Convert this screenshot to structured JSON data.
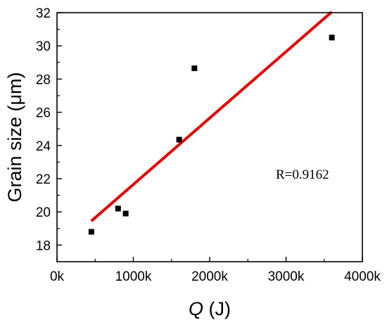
{
  "chart_data": {
    "type": "scatter",
    "title": "",
    "xlabel": {
      "symbol": "Q",
      "unit": " (J)"
    },
    "ylabel": "Grain size (μm)",
    "xlim": [
      0,
      4000000
    ],
    "ylim": [
      17,
      32
    ],
    "x_ticks": [
      {
        "value": 0,
        "label": "0k"
      },
      {
        "value": 1000000,
        "label": "1000k"
      },
      {
        "value": 2000000,
        "label": "2000k"
      },
      {
        "value": 3000000,
        "label": "3000k"
      },
      {
        "value": 4000000,
        "label": "4000k"
      }
    ],
    "y_ticks": [
      {
        "value": 18,
        "label": "18"
      },
      {
        "value": 20,
        "label": "20"
      },
      {
        "value": 22,
        "label": "22"
      },
      {
        "value": 24,
        "label": "24"
      },
      {
        "value": 26,
        "label": "26"
      },
      {
        "value": 28,
        "label": "28"
      },
      {
        "value": 30,
        "label": "30"
      },
      {
        "value": 32,
        "label": "32"
      }
    ],
    "points": [
      {
        "x": 450000,
        "y": 18.8
      },
      {
        "x": 800000,
        "y": 20.2
      },
      {
        "x": 900000,
        "y": 19.9
      },
      {
        "x": 1600000,
        "y": 24.35
      },
      {
        "x": 1800000,
        "y": 28.65
      },
      {
        "x": 3600000,
        "y": 30.5
      }
    ],
    "fit_line": {
      "x": [
        450000,
        3600000
      ],
      "y": [
        19.45,
        32.05
      ],
      "color": "#e00000"
    },
    "marker_color": "#000000",
    "annotation": "R=0.9162",
    "grid": false,
    "legend": "none"
  }
}
